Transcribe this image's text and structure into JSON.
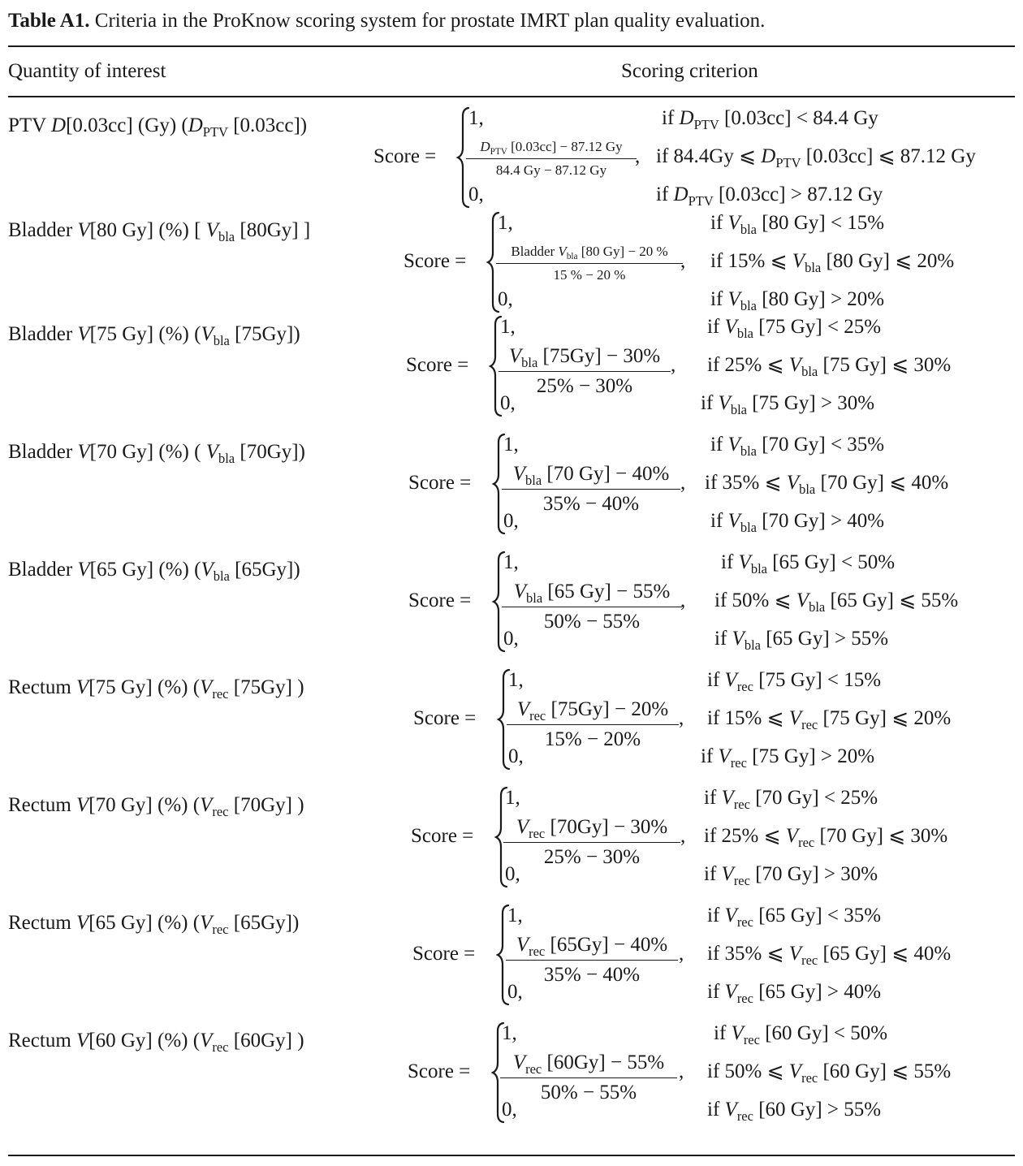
{
  "caption": {
    "label": "Table A1.",
    "text": "Criteria in the ProKnow scoring system for prostate IMRT plan quality evaluation."
  },
  "table": {
    "header": {
      "quantity": "Quantity of interest",
      "criterion": "Scoring criterion"
    },
    "score_label": "Score =",
    "one": "1,",
    "zero": "0,",
    "comma": ",",
    "rows": [
      {
        "quantity": "PTV D[0.03cc] (Gy) (DPTV [0.03cc])",
        "numerator": "DPTV [0.03cc] − 87.12 Gy",
        "denominator": "84.4 Gy − 87.12 Gy",
        "cond_one": "if DPTV [0.03cc] < 84.4 Gy",
        "cond_mid": "if 84.4Gy ⩽ DPTV [0.03cc] ⩽ 87.12 Gy",
        "cond_zero": "if DPTV [0.03cc] > 87.12 Gy"
      },
      {
        "quantity": "Bladder V[80 Gy] (%) [ Vbla [80Gy] ]",
        "numerator": "Bladder Vbla [80 Gy] − 20 %",
        "denominator": "15 % − 20 %",
        "cond_one": "if Vbla [80 Gy] < 15%",
        "cond_mid": "if 15% ⩽ Vbla [80 Gy] ⩽ 20%",
        "cond_zero": "if Vbla [80 Gy] > 20%"
      },
      {
        "quantity": "Bladder V[75 Gy] (%) (Vbla [75Gy])",
        "numerator": "Vbla [75Gy] − 30%",
        "denominator": "25% − 30%",
        "cond_one": "if Vbla [75 Gy] < 25%",
        "cond_mid": "if 25% ⩽ Vbla [75 Gy] ⩽ 30%",
        "cond_zero": "if Vbla [75 Gy] > 30%"
      },
      {
        "quantity": "Bladder V[70 Gy] (%) ( Vbla [70Gy])",
        "numerator": "Vbla [70 Gy] − 40%",
        "denominator": "35% − 40%",
        "cond_one": "if Vbla [70 Gy] < 35%",
        "cond_mid": "if 35% ⩽ Vbla [70 Gy] ⩽ 40%",
        "cond_zero": "if Vbla [70 Gy] > 40%"
      },
      {
        "quantity": "Bladder V[65 Gy] (%) (Vbla [65Gy])",
        "numerator": "Vbla [65 Gy] − 55%",
        "denominator": "50% − 55%",
        "cond_one": "if Vbla [65 Gy] < 50%",
        "cond_mid": "if 50% ⩽ Vbla [65 Gy] ⩽ 55%",
        "cond_zero": "if Vbla [65 Gy] > 55%"
      },
      {
        "quantity": "Rectum V[75 Gy] (%) (Vrec [75Gy] )",
        "numerator": "Vrec [75Gy] − 20%",
        "denominator": "15% − 20%",
        "cond_one": "if Vrec [75 Gy] < 15%",
        "cond_mid": "if 15% ⩽ Vrec [75 Gy] ⩽ 20%",
        "cond_zero": "if Vrec [75 Gy] > 20%"
      },
      {
        "quantity": "Rectum V[70 Gy] (%) (Vrec [70Gy] )",
        "numerator": "Vrec [70Gy] − 30%",
        "denominator": "25% − 30%",
        "cond_one": "if Vrec [70 Gy] < 25%",
        "cond_mid": "if 25% ⩽ Vrec [70 Gy] ⩽ 30%",
        "cond_zero": "if Vrec [70 Gy] > 30%"
      },
      {
        "quantity": "Rectum V[65 Gy] (%) (Vrec [65Gy])",
        "numerator": "Vrec [65Gy] − 40%",
        "denominator": "35% − 40%",
        "cond_one": "if Vrec [65 Gy] < 35%",
        "cond_mid": "if 35% ⩽ Vrec [65 Gy] ⩽ 40%",
        "cond_zero": "if Vrec [65 Gy] > 40%"
      },
      {
        "quantity": "Rectum V[60 Gy] (%) (Vrec [60Gy] )",
        "numerator": "Vrec [60Gy] − 55%",
        "denominator": "50% − 55%",
        "cond_one": "if Vrec [60 Gy] < 50%",
        "cond_mid": "if 50% ⩽ Vrec [60 Gy] ⩽ 55%",
        "cond_zero": "if Vrec [60 Gy] > 55%"
      }
    ]
  }
}
